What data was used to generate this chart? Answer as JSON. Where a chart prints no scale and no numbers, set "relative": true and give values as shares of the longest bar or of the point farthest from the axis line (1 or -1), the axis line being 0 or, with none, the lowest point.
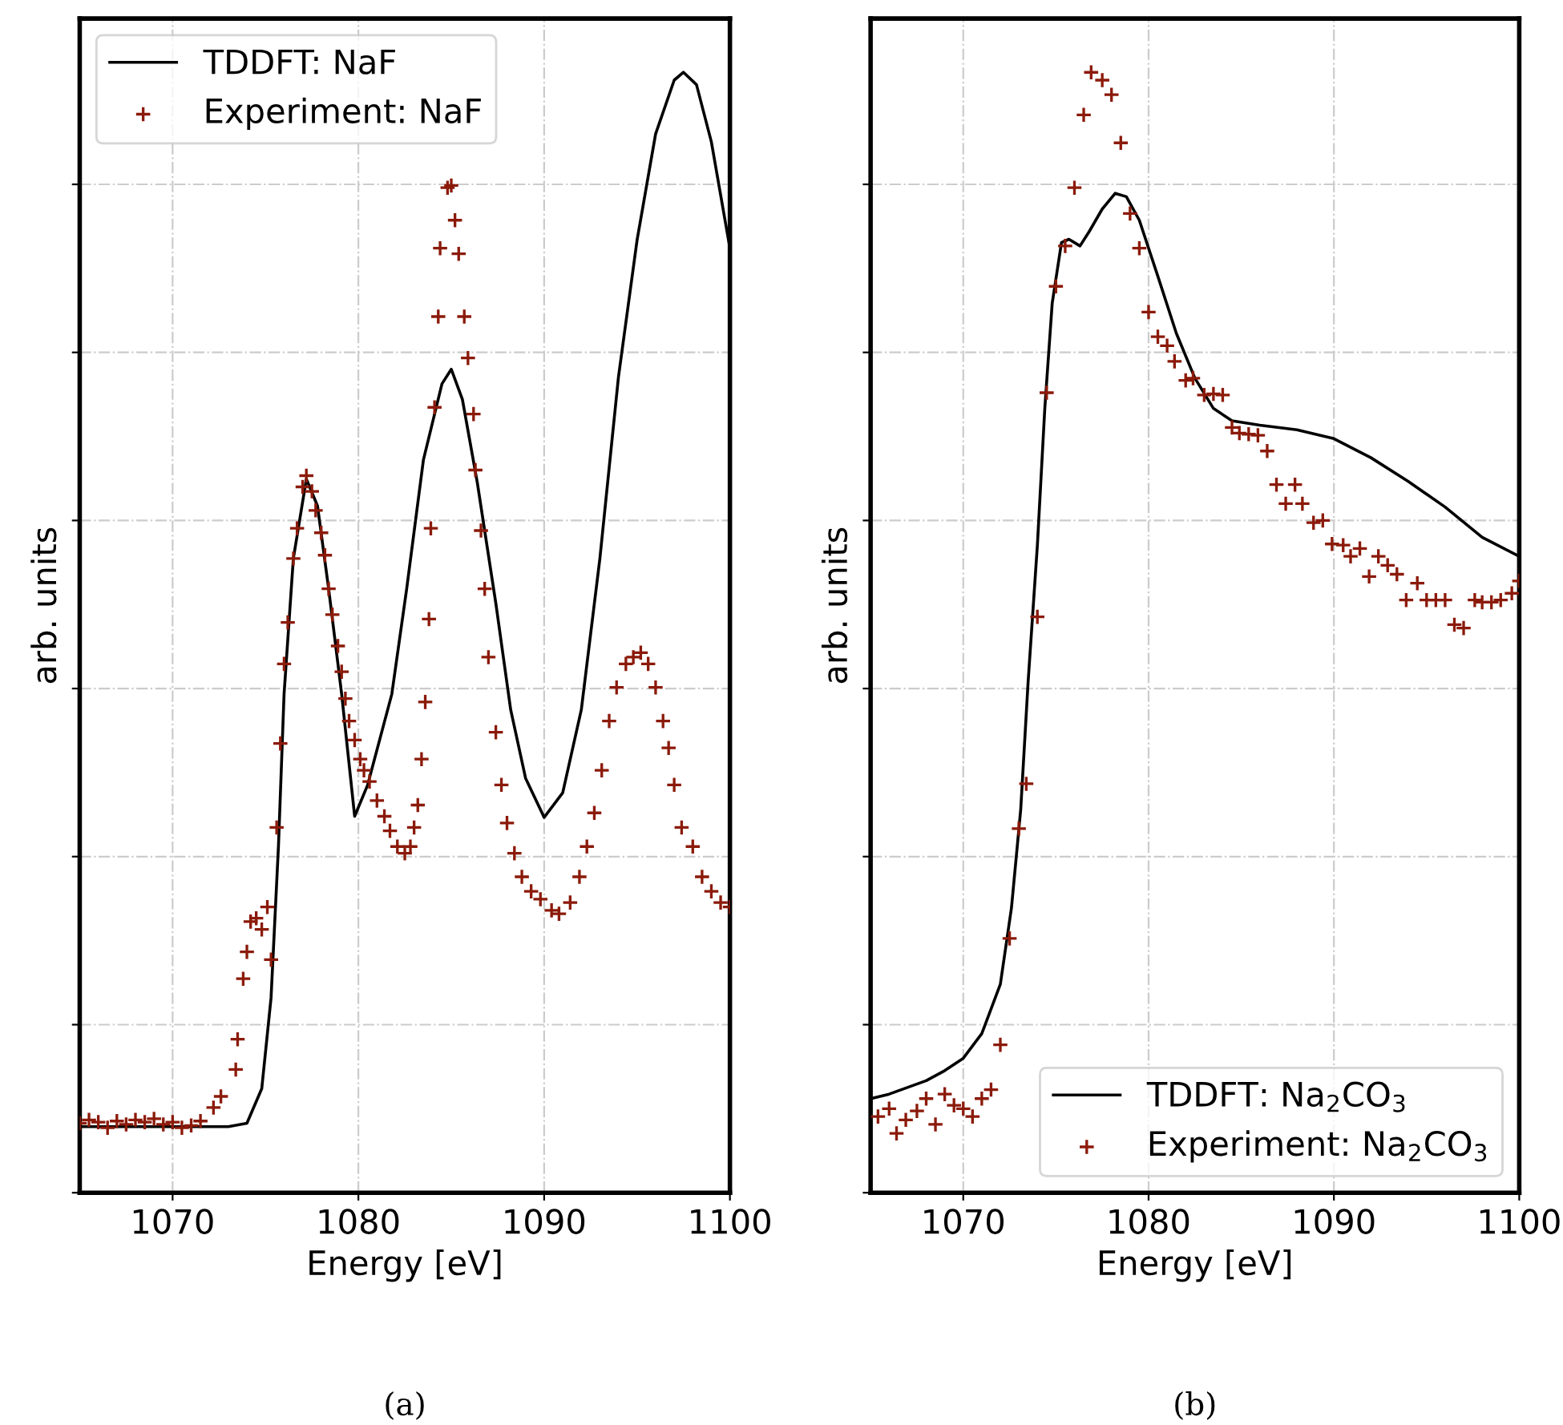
{
  "chart_data": [
    {
      "type": "line",
      "relative": true,
      "xlabel": "Energy [eV]",
      "ylabel": "arb. units",
      "xlim": [
        1065,
        1100
      ],
      "xticks": [
        1070,
        1080,
        1090,
        1100
      ],
      "tick_labels": "x",
      "grid": true,
      "legend": "top left",
      "annotations": [
        "(a)"
      ],
      "series": [
        {
          "name": "TDDFT: NaF",
          "color": "#000000",
          "marker": "none",
          "line_style": "solid",
          "x": [
            1065,
            1073.0,
            1074.0,
            1074.8,
            1075.3,
            1075.7,
            1076.0,
            1076.5,
            1077.2,
            1077.8,
            1078.4,
            1079.1,
            1079.8,
            1080.5,
            1081.8,
            1082.6,
            1083.5,
            1084.5,
            1085.0,
            1085.6,
            1086.4,
            1087.4,
            1088.2,
            1089.0,
            1090.0,
            1091.0,
            1092.0,
            1093.0,
            1094.0,
            1095.0,
            1096.0,
            1097.0,
            1097.5,
            1098.2,
            1099.0,
            1100.0
          ],
          "values": [
            0.059,
            0.059,
            0.062,
            0.093,
            0.174,
            0.31,
            0.445,
            0.566,
            0.637,
            0.613,
            0.539,
            0.445,
            0.336,
            0.364,
            0.445,
            0.539,
            0.654,
            0.722,
            0.735,
            0.708,
            0.634,
            0.526,
            0.431,
            0.37,
            0.335,
            0.357,
            0.431,
            0.566,
            0.728,
            0.85,
            0.945,
            0.993,
            1.0,
            0.989,
            0.938,
            0.843
          ]
        },
        {
          "name": "Experiment: NaF",
          "type": "scatter",
          "color": "#8b1a0a",
          "marker": "cross",
          "x": [
            1065.0,
            1065.5,
            1066.0,
            1066.5,
            1067.0,
            1067.5,
            1068.0,
            1068.5,
            1069.0,
            1069.5,
            1070.0,
            1070.5,
            1071.0,
            1071.5,
            1072.2,
            1072.6,
            1073.4,
            1073.5,
            1073.8,
            1074.0,
            1074.2,
            1074.5,
            1074.8,
            1075.1,
            1075.3,
            1075.6,
            1075.8,
            1076.0,
            1076.2,
            1076.5,
            1076.7,
            1077.0,
            1077.2,
            1077.5,
            1077.7,
            1078.0,
            1078.2,
            1078.4,
            1078.6,
            1078.9,
            1079.1,
            1079.3,
            1079.5,
            1079.8,
            1080.1,
            1080.3,
            1080.6,
            1081.0,
            1081.4,
            1081.7,
            1082.1,
            1082.5,
            1082.8,
            1083.0,
            1083.2,
            1083.4,
            1083.6,
            1083.8,
            1083.9,
            1084.1,
            1084.3,
            1084.4,
            1084.8,
            1085.0,
            1085.2,
            1085.4,
            1085.7,
            1085.9,
            1086.2,
            1086.3,
            1086.6,
            1086.8,
            1087.0,
            1087.4,
            1087.7,
            1088.0,
            1088.4,
            1088.8,
            1089.3,
            1089.8,
            1090.4,
            1090.8,
            1091.4,
            1091.9,
            1092.3,
            1092.7,
            1093.1,
            1093.5,
            1093.9,
            1094.4,
            1094.8,
            1095.2,
            1095.6,
            1096.0,
            1096.4,
            1096.7,
            1097.0,
            1097.4,
            1098.0,
            1098.5,
            1099.0,
            1099.5,
            1100.0
          ],
          "values": [
            0.062,
            0.065,
            0.063,
            0.058,
            0.064,
            0.061,
            0.065,
            0.063,
            0.066,
            0.061,
            0.063,
            0.058,
            0.06,
            0.064,
            0.076,
            0.086,
            0.11,
            0.137,
            0.191,
            0.215,
            0.242,
            0.245,
            0.235,
            0.255,
            0.208,
            0.326,
            0.401,
            0.472,
            0.509,
            0.566,
            0.593,
            0.63,
            0.64,
            0.626,
            0.609,
            0.589,
            0.569,
            0.539,
            0.516,
            0.488,
            0.465,
            0.441,
            0.421,
            0.404,
            0.387,
            0.377,
            0.367,
            0.35,
            0.336,
            0.323,
            0.309,
            0.303,
            0.309,
            0.326,
            0.346,
            0.387,
            0.438,
            0.512,
            0.593,
            0.701,
            0.782,
            0.843,
            0.897,
            0.899,
            0.868,
            0.838,
            0.782,
            0.745,
            0.695,
            0.645,
            0.591,
            0.539,
            0.478,
            0.411,
            0.364,
            0.33,
            0.303,
            0.282,
            0.269,
            0.262,
            0.252,
            0.249,
            0.259,
            0.282,
            0.309,
            0.339,
            0.377,
            0.421,
            0.451,
            0.472,
            0.478,
            0.482,
            0.472,
            0.451,
            0.421,
            0.397,
            0.364,
            0.326,
            0.309,
            0.282,
            0.269,
            0.259,
            0.255
          ]
        }
      ]
    },
    {
      "type": "line",
      "relative": true,
      "xlabel": "Energy [eV]",
      "ylabel": "arb. units",
      "xlim": [
        1065,
        1100
      ],
      "xticks": [
        1070,
        1080,
        1090,
        1100
      ],
      "tick_labels": "x",
      "grid": true,
      "legend": "bottom right",
      "annotations": [
        "(b)"
      ],
      "series": [
        {
          "name": "TDDFT: Na$_{2}$CO$_{3}$",
          "color": "#000000",
          "marker": "none",
          "line_style": "solid",
          "x": [
            1065,
            1066,
            1068,
            1069,
            1070,
            1071,
            1072,
            1072.6,
            1073.1,
            1073.5,
            1074.0,
            1074.4,
            1074.8,
            1075.3,
            1075.7,
            1076.3,
            1076.8,
            1077.5,
            1078.2,
            1078.8,
            1079.5,
            1080.5,
            1081.5,
            1082.5,
            1083.5,
            1084.5,
            1086,
            1088,
            1090,
            1092,
            1094,
            1096,
            1098,
            1100
          ],
          "values": [
            0.084,
            0.088,
            0.1,
            0.109,
            0.12,
            0.142,
            0.186,
            0.254,
            0.342,
            0.456,
            0.578,
            0.7,
            0.794,
            0.848,
            0.851,
            0.845,
            0.858,
            0.878,
            0.892,
            0.889,
            0.868,
            0.818,
            0.767,
            0.727,
            0.7,
            0.689,
            0.685,
            0.681,
            0.673,
            0.656,
            0.635,
            0.612,
            0.585,
            0.568
          ]
        },
        {
          "name": "Experiment: Na$_{2}$CO$_{3}$",
          "type": "scatter",
          "color": "#8b1a0a",
          "marker": "cross",
          "x": [
            1065.4,
            1066.0,
            1066.4,
            1066.9,
            1067.5,
            1068.0,
            1068.5,
            1069.0,
            1069.5,
            1070.0,
            1070.5,
            1071.0,
            1071.5,
            1072.0,
            1072.5,
            1073.0,
            1073.4,
            1074.0,
            1074.5,
            1075.0,
            1075.5,
            1076.0,
            1076.5,
            1076.9,
            1077.5,
            1078.0,
            1078.5,
            1079.0,
            1079.5,
            1080.0,
            1080.5,
            1081.0,
            1081.4,
            1082.0,
            1082.4,
            1083.0,
            1083.5,
            1084.0,
            1084.5,
            1084.9,
            1085.4,
            1085.9,
            1086.4,
            1086.9,
            1087.4,
            1087.9,
            1088.3,
            1088.9,
            1089.4,
            1089.9,
            1090.5,
            1090.9,
            1091.4,
            1091.9,
            1092.4,
            1092.9,
            1093.4,
            1093.9,
            1094.5,
            1095.0,
            1095.5,
            1096.0,
            1096.5,
            1097.0,
            1097.6,
            1098.0,
            1098.5,
            1099.0,
            1099.6,
            1100.0
          ],
          "values": [
            0.068,
            0.075,
            0.053,
            0.065,
            0.073,
            0.084,
            0.061,
            0.088,
            0.078,
            0.075,
            0.068,
            0.084,
            0.092,
            0.132,
            0.227,
            0.325,
            0.365,
            0.514,
            0.714,
            0.809,
            0.845,
            0.897,
            0.962,
            1.0,
            0.993,
            0.98,
            0.937,
            0.874,
            0.843,
            0.786,
            0.764,
            0.756,
            0.742,
            0.725,
            0.727,
            0.712,
            0.713,
            0.712,
            0.683,
            0.678,
            0.677,
            0.676,
            0.662,
            0.632,
            0.615,
            0.632,
            0.615,
            0.598,
            0.6,
            0.579,
            0.578,
            0.568,
            0.575,
            0.55,
            0.568,
            0.56,
            0.552,
            0.529,
            0.544,
            0.529,
            0.529,
            0.529,
            0.507,
            0.504,
            0.529,
            0.527,
            0.527,
            0.529,
            0.535,
            0.546
          ]
        }
      ]
    }
  ]
}
